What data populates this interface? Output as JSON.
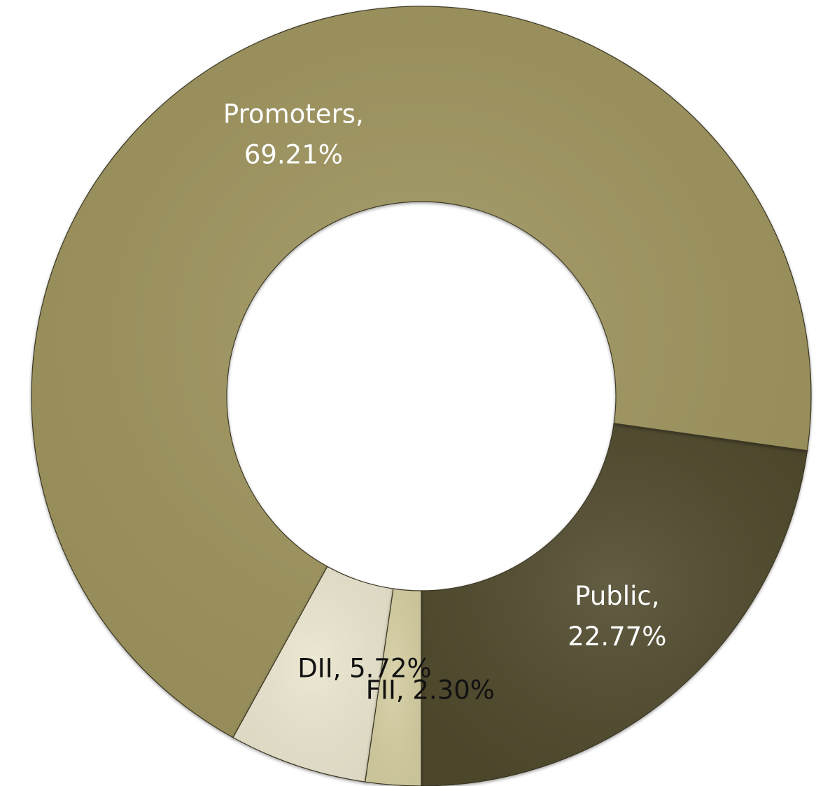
{
  "chart_data": {
    "type": "pie",
    "variant": "donut",
    "title": "",
    "slices": [
      {
        "name": "Public",
        "value": 22.77,
        "label_line1": "Public,",
        "label_line2": "22.77%",
        "color": "#514c2f",
        "label_color": "#ffffff"
      },
      {
        "name": "Promoters",
        "value": 69.21,
        "label_line1": "Promoters,",
        "label_line2": "69.21%",
        "color": "#9f955e",
        "label_color": "#ffffff"
      },
      {
        "name": "DII",
        "value": 5.72,
        "label_line1": "DII, 5.72%",
        "label_line2": "",
        "color": "#ebe6cf",
        "label_color": "#111111"
      },
      {
        "name": "FII",
        "value": 2.3,
        "label_line1": "FII, 2.30%",
        "label_line2": "",
        "color": "#d6cfa3",
        "label_color": "#111111"
      }
    ],
    "start_angle_deg": 180,
    "direction": "clockwise",
    "legend": "none",
    "background_color": "#ffffff"
  }
}
